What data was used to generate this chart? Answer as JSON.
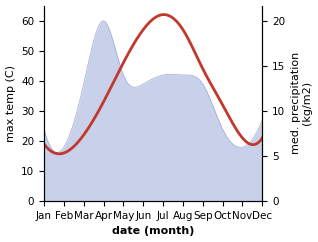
{
  "months": [
    "Jan",
    "Feb",
    "Mar",
    "Apr",
    "May",
    "Jun",
    "Jul",
    "Aug",
    "Sep",
    "Oct",
    "Nov",
    "Dec"
  ],
  "month_positions": [
    1,
    2,
    3,
    4,
    5,
    6,
    7,
    8,
    9,
    10,
    11,
    12
  ],
  "temperature": [
    19,
    16,
    22,
    33,
    46,
    57,
    62,
    57,
    44,
    32,
    21,
    21
  ],
  "precipitation": [
    8,
    6,
    13,
    20,
    14,
    13,
    14,
    14,
    13,
    8,
    6,
    9
  ],
  "temp_ylim": [
    0,
    65
  ],
  "precip_ylim": [
    0,
    21.7
  ],
  "temp_color": "#c0392b",
  "precip_fill_color": "#c8d0ea",
  "precip_line_color": "#9fa8da",
  "xlabel": "date (month)",
  "ylabel_left": "max temp (C)",
  "ylabel_right": "med. precipitation\n(kg/m2)",
  "temp_linewidth": 2.0,
  "label_fontsize": 8,
  "tick_fontsize": 7.5
}
